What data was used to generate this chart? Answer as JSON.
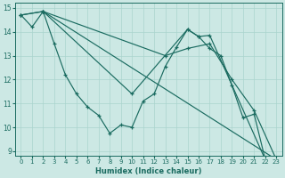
{
  "xlabel": "Humidex (Indice chaleur)",
  "bg_color": "#cce8e4",
  "grid_color": "#aad4ce",
  "line_color": "#1a6b60",
  "xlim": [
    -0.5,
    23.5
  ],
  "ylim": [
    8.8,
    15.2
  ],
  "yticks": [
    9,
    10,
    11,
    12,
    13,
    14,
    15
  ],
  "xticks": [
    0,
    1,
    2,
    3,
    4,
    5,
    6,
    7,
    8,
    9,
    10,
    11,
    12,
    13,
    14,
    15,
    16,
    17,
    18,
    19,
    20,
    21,
    22,
    23
  ],
  "lines": [
    {
      "x": [
        0,
        1,
        2,
        3,
        4,
        5,
        6,
        7,
        8,
        9,
        10,
        11,
        12,
        13,
        14,
        15,
        16,
        17,
        18,
        19,
        20,
        21,
        22,
        23
      ],
      "y": [
        14.7,
        14.2,
        14.85,
        13.5,
        12.2,
        11.4,
        10.85,
        10.5,
        9.75,
        10.1,
        10.0,
        11.1,
        11.4,
        12.55,
        13.35,
        14.1,
        13.8,
        13.3,
        13.0,
        11.75,
        10.4,
        10.55,
        8.65,
        8.65
      ]
    },
    {
      "x": [
        0,
        2,
        23
      ],
      "y": [
        14.7,
        14.85,
        8.65
      ]
    },
    {
      "x": [
        0,
        2,
        13,
        15,
        17,
        19,
        21,
        23
      ],
      "y": [
        14.7,
        14.85,
        13.0,
        13.3,
        13.5,
        12.0,
        10.7,
        8.65
      ]
    },
    {
      "x": [
        2,
        10,
        15,
        16,
        17,
        22
      ],
      "y": [
        14.85,
        11.4,
        14.1,
        13.8,
        13.85,
        8.65
      ]
    }
  ]
}
